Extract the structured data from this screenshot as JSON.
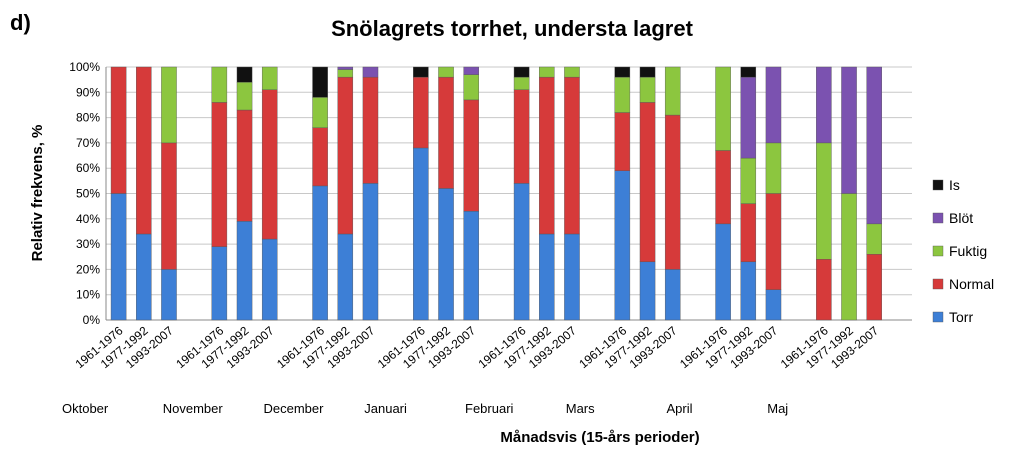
{
  "panel_label": "d)",
  "chart_data": {
    "type": "bar",
    "stacked": true,
    "title": "Snölagrets torrhet, understa lagret",
    "xlabel": "Månadsvis (15-års perioder)",
    "ylabel": "Relativ frekvens, %",
    "ylim": [
      0,
      100
    ],
    "yticks": [
      "0%",
      "10%",
      "20%",
      "30%",
      "40%",
      "50%",
      "60%",
      "70%",
      "80%",
      "90%",
      "100%"
    ],
    "months": [
      "Oktober",
      "November",
      "December",
      "Januari",
      "Februari",
      "Mars",
      "April",
      "Maj"
    ],
    "periods": [
      "1961-1976",
      "1977-1992",
      "1993-2007"
    ],
    "legend_position": "right",
    "series": [
      {
        "name": "Torr",
        "color": "#3d7fd6",
        "values": [
          50,
          34,
          20,
          29,
          39,
          32,
          53,
          34,
          54,
          68,
          52,
          43,
          54,
          34,
          34,
          59,
          23,
          20,
          38,
          23,
          12,
          0,
          0,
          0
        ]
      },
      {
        "name": "Normal",
        "color": "#d63a3a",
        "values": [
          50,
          66,
          50,
          57,
          44,
          59,
          23,
          62,
          42,
          28,
          44,
          44,
          37,
          62,
          62,
          23,
          63,
          61,
          29,
          23,
          38,
          24,
          0,
          26
        ]
      },
      {
        "name": "Fuktig",
        "color": "#8cc63f",
        "values": [
          0,
          0,
          30,
          14,
          11,
          9,
          12,
          3,
          0,
          0,
          4,
          10,
          5,
          4,
          4,
          14,
          10,
          19,
          33,
          18,
          20,
          46,
          50,
          12
        ]
      },
      {
        "name": "Blöt",
        "color": "#7b52b0",
        "values": [
          0,
          0,
          0,
          0,
          0,
          0,
          0,
          1,
          4,
          0,
          0,
          3,
          0,
          0,
          0,
          0,
          0,
          0,
          0,
          32,
          30,
          30,
          50,
          62
        ]
      },
      {
        "name": "Is",
        "color": "#111111",
        "values": [
          0,
          0,
          0,
          0,
          6,
          0,
          12,
          0,
          0,
          4,
          0,
          0,
          4,
          0,
          0,
          4,
          4,
          0,
          0,
          4,
          0,
          0,
          0,
          0
        ]
      }
    ]
  }
}
